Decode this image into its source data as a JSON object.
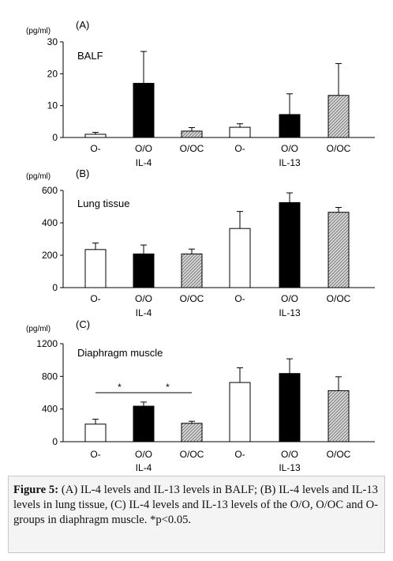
{
  "chart_data": [
    {
      "type": "bar",
      "panel_label": "(A)",
      "title": "BALF",
      "unit": "(pg/ml)",
      "categories": [
        "O-",
        "O/O",
        "O/OC",
        "O-",
        "O/O",
        "O/OC"
      ],
      "groups": [
        "IL-4",
        "IL-13"
      ],
      "values": [
        1,
        17,
        2,
        3.2,
        7.2,
        13.2
      ],
      "errors": [
        0.6,
        10,
        1.1,
        1.1,
        6.5,
        10
      ],
      "bar_styles": [
        "white",
        "black",
        "hatched",
        "white",
        "black",
        "hatched"
      ],
      "ylim": [
        0,
        30
      ],
      "yticks": [
        0,
        10,
        20,
        30
      ],
      "significance": []
    },
    {
      "type": "bar",
      "panel_label": "(B)",
      "title": "Lung tissue",
      "unit": "(pg/ml)",
      "categories": [
        "O-",
        "O/O",
        "O/OC",
        "O-",
        "O/O",
        "O/OC"
      ],
      "groups": [
        "IL-4",
        "IL-13"
      ],
      "values": [
        235,
        208,
        208,
        365,
        525,
        465
      ],
      "errors": [
        40,
        55,
        30,
        105,
        60,
        30
      ],
      "bar_styles": [
        "white",
        "black",
        "hatched",
        "white",
        "black",
        "hatched"
      ],
      "ylim": [
        0,
        600
      ],
      "yticks": [
        0,
        200,
        400,
        600
      ],
      "significance": []
    },
    {
      "type": "bar",
      "panel_label": "(C)",
      "title": "Diaphragm muscle",
      "unit": "(pg/ml)",
      "categories": [
        "O-",
        "O/O",
        "O/OC",
        "O-",
        "O/O",
        "O/OC"
      ],
      "groups": [
        "IL-4",
        "IL-13"
      ],
      "values": [
        215,
        435,
        225,
        725,
        835,
        625
      ],
      "errors": [
        60,
        50,
        25,
        180,
        180,
        170
      ],
      "bar_styles": [
        "white",
        "black",
        "hatched",
        "white",
        "black",
        "hatched"
      ],
      "ylim": [
        0,
        1200
      ],
      "yticks": [
        0,
        400,
        800,
        1200
      ],
      "significance": [
        {
          "from": 0,
          "to": 1,
          "label": "*"
        },
        {
          "from": 1,
          "to": 2,
          "label": "*"
        }
      ]
    }
  ],
  "caption": {
    "label": "Figure 5:",
    "text": "(A) IL-4 levels and IL-13 levels in BALF; (B) IL-4 levels and IL-13 levels in lung tissue, (C) IL-4 levels and IL-13 levels of the O/O, O/OC and O- groups in diaphragm muscle. *p<0.05."
  },
  "colors": {
    "bar_outline": "#000000",
    "bar_black": "#000000",
    "bar_white": "#ffffff",
    "hatch_line": "#777777",
    "hatch_bg": "#dddddd",
    "caption_bg": "#f4f4f4"
  }
}
